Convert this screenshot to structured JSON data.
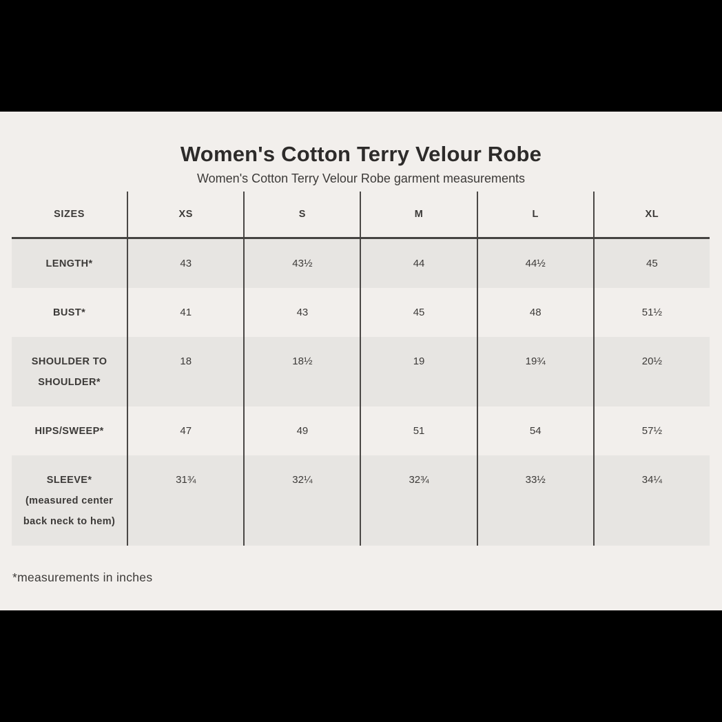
{
  "title": "Women's Cotton Terry Velour Robe",
  "subtitle": "Women's Cotton Terry Velour Robe garment measurements",
  "footnote": "*measurements in inches",
  "chart_data": {
    "type": "table",
    "title": "Women's Cotton Terry Velour Robe garment measurements",
    "units": "inches",
    "columns": [
      "SIZES",
      "XS",
      "S",
      "M",
      "L",
      "XL"
    ],
    "rows": [
      {
        "label": "LENGTH*",
        "note": "",
        "values": [
          "43",
          "43½",
          "44",
          "44½",
          "45"
        ]
      },
      {
        "label": "BUST*",
        "note": "",
        "values": [
          "41",
          "43",
          "45",
          "48",
          "51½"
        ]
      },
      {
        "label": "SHOULDER TO SHOULDER*",
        "note": "",
        "values": [
          "18",
          "18½",
          "19",
          "19¾",
          "20½"
        ]
      },
      {
        "label": "HIPS/SWEEP*",
        "note": "",
        "values": [
          "47",
          "49",
          "51",
          "54",
          "57½"
        ]
      },
      {
        "label": "SLEEVE*",
        "note": "(measured center back neck to hem)",
        "values": [
          "31¾",
          "32¼",
          "32¾",
          "33½",
          "34¼"
        ]
      }
    ],
    "layout": {
      "shaded_row_indexes": [
        0,
        2,
        4
      ],
      "grid": "vertical column dividers + header underline only"
    }
  },
  "colors": {
    "letterbox": "#000000",
    "page_background": "#f2efec",
    "shaded_row": "#e7e5e2",
    "text": "#3c3a38",
    "title_text": "#2d2b2a",
    "divider_line": "#4a4745"
  }
}
